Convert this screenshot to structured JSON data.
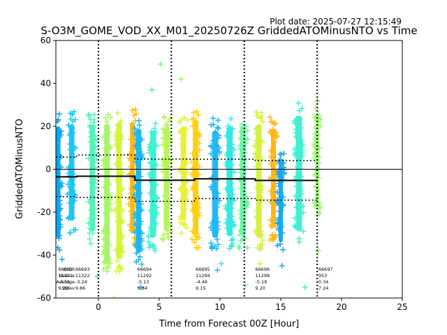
{
  "chart_data": {
    "type": "scatter",
    "plot_date": "Plot date: 2025-07-27 12:15:49",
    "title": "S-O3M_GOME_VOD_XX_M01_20250726Z GriddedATOMinusNTO vs Time",
    "xlabel": "Time from Forecast 00Z [Hour]",
    "ylabel": "GriddedATOMinusNTO",
    "xlim": [
      -3.5,
      25
    ],
    "ylim": [
      -60,
      60
    ],
    "xticks": [
      "0",
      "5",
      "10",
      "15",
      "20",
      "25"
    ],
    "yticks": [
      "-60",
      "-40",
      "-20",
      "0",
      "20",
      "40",
      "60"
    ],
    "zero_line": 0,
    "forecast_boundaries": [
      0,
      6,
      12,
      18
    ],
    "mean_line": [
      {
        "x": [
          -3.5,
          -1.8
        ],
        "y": -3.55
      },
      {
        "x": [
          -1.8,
          3.0
        ],
        "y": -3.24
      },
      {
        "x": [
          3.0,
          7.9
        ],
        "y": -5.13
      },
      {
        "x": [
          7.9,
          12.9
        ],
        "y": -4.49
      },
      {
        "x": [
          12.9,
          18.0
        ],
        "y": -5.19
      }
    ],
    "stdev_upper": [
      {
        "x": [
          -3.5,
          -1.8
        ],
        "y": 5.65
      },
      {
        "x": [
          -1.8,
          3.0
        ],
        "y": 6.62
      },
      {
        "x": [
          3.0,
          7.9
        ],
        "y": 4.71
      },
      {
        "x": [
          7.9,
          12.9
        ],
        "y": 4.66
      },
      {
        "x": [
          12.9,
          18.0
        ],
        "y": 4.01
      }
    ],
    "stdev_lower": [
      {
        "x": [
          -3.5,
          -1.8
        ],
        "y": -12.75
      },
      {
        "x": [
          -1.8,
          3.0
        ],
        "y": -13.1
      },
      {
        "x": [
          3.0,
          7.9
        ],
        "y": -14.97
      },
      {
        "x": [
          7.9,
          12.9
        ],
        "y": -13.64
      },
      {
        "x": [
          12.9,
          18.0
        ],
        "y": -14.39
      }
    ],
    "orbit_stats_labels": [
      "Orbit",
      "Nvalue",
      "Average",
      "Stdev"
    ],
    "orbit_stats": [
      {
        "x": -3.3,
        "orbit": "66692",
        "nvalue": "11311",
        "average": "-3.55",
        "stdev": "9.20"
      },
      {
        "x": -1.9,
        "orbit": "66693",
        "nvalue": "11322",
        "average": "-3.24",
        "stdev": "9.86"
      },
      {
        "x": 3.2,
        "orbit": "66694",
        "nvalue": "11292",
        "average": "-5.13",
        "stdev": "9.84"
      },
      {
        "x": 8.0,
        "orbit": "66695",
        "nvalue": "11294",
        "average": "-4.49",
        "stdev": "9.15"
      },
      {
        "x": 12.9,
        "orbit": "66696",
        "nvalue": "11298",
        "average": "-5.19",
        "stdev": "9.20"
      },
      {
        "x": 18.1,
        "orbit": "66697",
        "nvalue": "953",
        "average": "0.34",
        "stdev": "7.24"
      }
    ],
    "clusters": [
      {
        "x": -3.3,
        "w": 0.35,
        "ymin": -38,
        "ymax": 26,
        "color": "#0aa8f0"
      },
      {
        "x": -2.2,
        "w": 0.45,
        "ymin": -30,
        "ymax": 27,
        "color": "#19c8f2"
      },
      {
        "x": -0.5,
        "w": 0.45,
        "ymin": -35,
        "ymax": 26,
        "color": "#55f2b8"
      },
      {
        "x": 0.7,
        "w": 0.45,
        "ymin": -50,
        "ymax": 27,
        "color": "#a8f56a"
      },
      {
        "x": 1.7,
        "w": 0.45,
        "ymin": -48,
        "ymax": 28,
        "color": "#d8f23a"
      },
      {
        "x": 2.8,
        "w": 0.4,
        "ymin": -36,
        "ymax": 28,
        "color": "#ffb81a"
      },
      {
        "x": 3.3,
        "w": 0.45,
        "ymin": -45,
        "ymax": 25,
        "color": "#1ab8f0"
      },
      {
        "x": 4.5,
        "w": 0.5,
        "ymin": -38,
        "ymax": 24,
        "color": "#40f0d2"
      },
      {
        "x": 5.6,
        "w": 0.45,
        "ymin": -35,
        "ymax": 26,
        "color": "#b6f55e"
      },
      {
        "x": 7.0,
        "w": 0.45,
        "ymin": -30,
        "ymax": 26,
        "color": "#e8f038"
      },
      {
        "x": 8.0,
        "w": 0.45,
        "ymin": -37,
        "ymax": 29,
        "color": "#ffd010"
      },
      {
        "x": 9.6,
        "w": 0.5,
        "ymin": -38,
        "ymax": 24,
        "color": "#23b8f5"
      },
      {
        "x": 10.8,
        "w": 0.5,
        "ymin": -37,
        "ymax": 26,
        "color": "#35e8e0"
      },
      {
        "x": 11.9,
        "w": 0.5,
        "ymin": -37,
        "ymax": 26,
        "color": "#6cf5a5"
      },
      {
        "x": 13.2,
        "w": 0.45,
        "ymin": -38,
        "ymax": 27,
        "color": "#d6f040"
      },
      {
        "x": 14.4,
        "w": 0.4,
        "ymin": -33,
        "ymax": 25,
        "color": "#ffb81a"
      },
      {
        "x": 15.0,
        "w": 0.35,
        "ymin": -40,
        "ymax": 10,
        "color": "#1aa8ee"
      },
      {
        "x": 16.5,
        "w": 0.5,
        "ymin": -35,
        "ymax": 31,
        "color": "#40f0d0"
      },
      {
        "x": 18.0,
        "w": 0.3,
        "ymin": -22,
        "ymax": 32,
        "color": "#a0f57a"
      }
    ],
    "outliers": [
      {
        "x": 5.1,
        "y": 49,
        "color": "#7df59a"
      },
      {
        "x": 6.8,
        "y": 42,
        "color": "#a8f56a"
      },
      {
        "x": 4.4,
        "y": 37,
        "color": "#40f0d2"
      },
      {
        "x": 1.3,
        "y": -60,
        "color": "#d8f23a"
      },
      {
        "x": 17.0,
        "y": -55,
        "color": "#40f0d0"
      },
      {
        "x": 3.5,
        "y": -55,
        "color": "#1ab8f0"
      },
      {
        "x": 12.1,
        "y": -54,
        "color": "#6cf5a5"
      },
      {
        "x": 9.8,
        "y": -47,
        "color": "#23b8f5"
      },
      {
        "x": 10.1,
        "y": -44,
        "color": "#35e8e0"
      },
      {
        "x": -0.1,
        "y": -50,
        "color": "#55f2b8"
      },
      {
        "x": 15.1,
        "y": -45,
        "color": "#1aa8ee"
      },
      {
        "x": -3.0,
        "y": -42,
        "color": "#0aa8f0"
      },
      {
        "x": 18.1,
        "y": -38,
        "color": "#a0f57a"
      },
      {
        "x": 13.3,
        "y": -44,
        "color": "#d6f040"
      }
    ]
  }
}
